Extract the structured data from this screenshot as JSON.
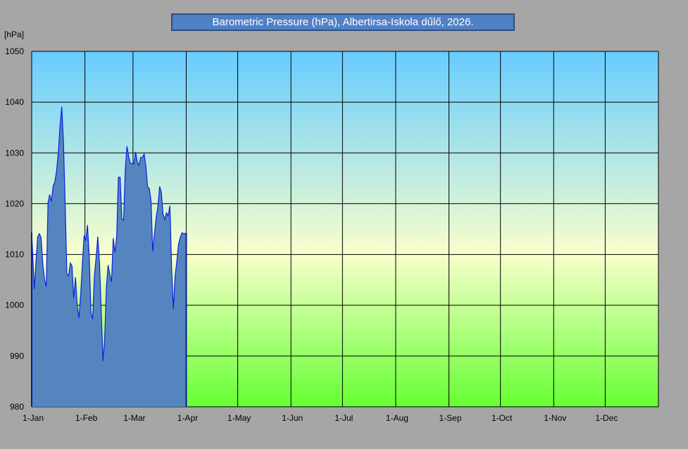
{
  "chart_data": {
    "type": "area",
    "title": "Barometric Pressure (hPa), Albertirsa-Iskola dűlő, 2026.",
    "ylabel": "[hPa]",
    "xlabel": "",
    "ylim": [
      980,
      1050
    ],
    "yticks": [
      980,
      990,
      1000,
      1010,
      1020,
      1030,
      1040,
      1050
    ],
    "xlim_days": [
      0,
      365
    ],
    "x_ticks": [
      {
        "day": 0,
        "label": "1-Jan"
      },
      {
        "day": 31,
        "label": "1-Feb"
      },
      {
        "day": 59,
        "label": "1-Mar"
      },
      {
        "day": 90,
        "label": "1-Apr"
      },
      {
        "day": 120,
        "label": "1-May"
      },
      {
        "day": 151,
        "label": "1-Jun"
      },
      {
        "day": 181,
        "label": "1-Jul"
      },
      {
        "day": 212,
        "label": "1-Aug"
      },
      {
        "day": 243,
        "label": "1-Sep"
      },
      {
        "day": 273,
        "label": "1-Oct"
      },
      {
        "day": 304,
        "label": "1-Nov"
      },
      {
        "day": 334,
        "label": "1-Dec"
      }
    ],
    "grid": true,
    "colors": {
      "area_fill": "#5585be",
      "area_line": "#0a20e0",
      "bg_top": "#66ccff",
      "bg_mid": "#f8ffcc",
      "bg_bottom": "#66ff33",
      "frame": "#a6a6a6"
    },
    "series": [
      {
        "x": [
          "2026-01-01",
          "2026-01-02",
          "2026-01-03",
          "2026-01-04",
          "2026-01-05",
          "2026-01-06",
          "2026-01-07",
          "2026-01-08",
          "2026-01-09",
          "2026-01-10",
          "2026-01-11",
          "2026-01-12",
          "2026-01-13",
          "2026-01-14",
          "2026-01-15",
          "2026-01-16",
          "2026-01-17",
          "2026-01-18",
          "2026-01-19",
          "2026-01-20",
          "2026-01-21",
          "2026-01-22",
          "2026-01-23",
          "2026-01-24",
          "2026-01-25",
          "2026-01-26",
          "2026-01-27",
          "2026-01-28",
          "2026-01-29",
          "2026-01-30",
          "2026-01-31",
          "2026-02-01",
          "2026-02-02",
          "2026-02-03",
          "2026-02-04",
          "2026-02-05",
          "2026-02-06",
          "2026-02-07",
          "2026-02-08",
          "2026-02-09",
          "2026-02-10",
          "2026-02-11",
          "2026-02-12",
          "2026-02-13",
          "2026-02-14",
          "2026-02-15",
          "2026-02-16",
          "2026-02-17",
          "2026-02-18",
          "2026-02-19",
          "2026-02-20",
          "2026-02-21",
          "2026-02-22",
          "2026-02-23",
          "2026-02-24",
          "2026-02-25",
          "2026-02-26",
          "2026-02-27",
          "2026-02-28",
          "2026-03-01",
          "2026-03-02",
          "2026-03-03",
          "2026-03-04",
          "2026-03-05",
          "2026-03-06",
          "2026-03-07",
          "2026-03-08",
          "2026-03-09",
          "2026-03-10",
          "2026-03-11",
          "2026-03-12",
          "2026-03-13",
          "2026-03-14",
          "2026-03-15",
          "2026-03-16",
          "2026-03-17",
          "2026-03-18",
          "2026-03-19",
          "2026-03-20",
          "2026-03-21",
          "2026-03-22",
          "2026-03-23",
          "2026-03-24",
          "2026-03-25",
          "2026-03-26",
          "2026-03-27",
          "2026-03-28",
          "2026-03-29",
          "2026-03-30",
          "2026-03-31"
        ],
        "y": [
          1014.3,
          1003.2,
          1008.6,
          1013.5,
          1014.1,
          1013.3,
          1008.0,
          1005.0,
          1003.7,
          1020.2,
          1021.8,
          1020.4,
          1023.5,
          1024.3,
          1026.5,
          1030.0,
          1035.2,
          1039.1,
          1032.0,
          1020.2,
          1006.2,
          1005.8,
          1008.3,
          1007.7,
          1001.4,
          1005.5,
          1000.0,
          997.5,
          1002.0,
          1008.1,
          1013.7,
          1012.7,
          1015.8,
          1009.8,
          998.5,
          997.3,
          1005.6,
          1009.3,
          1013.5,
          1008.4,
          998.5,
          989.0,
          993.2,
          1003.6,
          1007.9,
          1006.2,
          1004.6,
          1013.2,
          1010.4,
          1013.6,
          1025.2,
          1025.2,
          1017.0,
          1016.8,
          1026.6,
          1031.3,
          1029.2,
          1027.9,
          1027.9,
          1027.8,
          1030.2,
          1028.2,
          1027.6,
          1029.1,
          1029.1,
          1029.8,
          1027.3,
          1023.3,
          1023.0,
          1020.5,
          1010.6,
          1014.0,
          1017.4,
          1019.4,
          1023.4,
          1022.3,
          1018.0,
          1016.9,
          1018.2,
          1017.6,
          1019.6,
          1007.3,
          999.2,
          1005.7,
          1008.5,
          1012.0,
          1013.3,
          1014.3,
          1014.1,
          1014.2
        ]
      }
    ]
  }
}
